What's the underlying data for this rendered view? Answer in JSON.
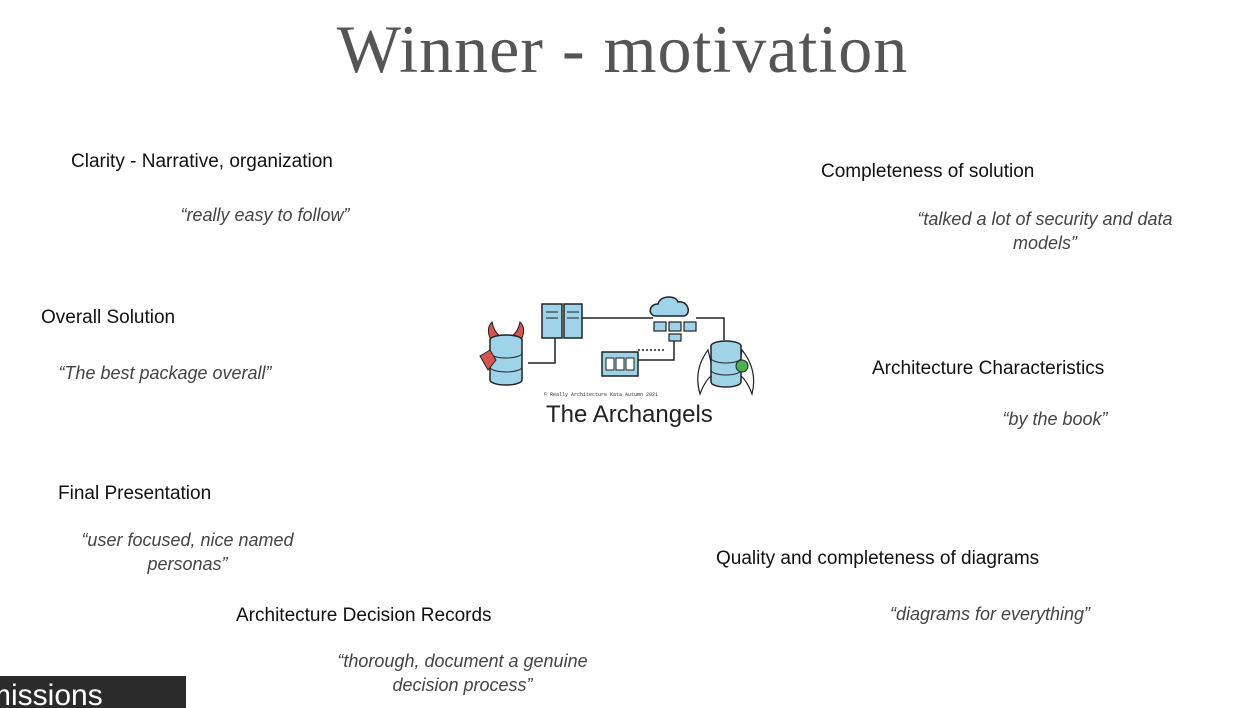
{
  "slide": {
    "title": "Winner - motivation",
    "criteria": [
      {
        "heading": "Clarity - Narrative, organization",
        "quote_lines": [
          "“really easy to follow”"
        ]
      },
      {
        "heading": "Completeness of solution",
        "quote_lines": [
          "“talked a lot of security and data",
          "models”"
        ]
      },
      {
        "heading": "Overall Solution",
        "quote_lines": [
          "“The best package overall”"
        ]
      },
      {
        "heading": "Architecture Characteristics",
        "quote_lines": [
          "“by the book”"
        ]
      },
      {
        "heading": "Final Presentation",
        "quote_lines": [
          "“user focused, nice named",
          "personas”"
        ]
      },
      {
        "heading": "Quality and completeness of diagrams",
        "quote_lines": [
          "“diagrams for everything”"
        ]
      },
      {
        "heading": "Architecture Decision Records",
        "quote_lines": [
          "“thorough, document a genuine",
          "decision process”"
        ]
      }
    ],
    "logo": {
      "name": "The Archangels",
      "small_text": "© Really Architecture Kata Autumn 2021",
      "colors": {
        "blue": "#9fd3ea",
        "outline": "#222222",
        "red": "#d9534f",
        "green": "#4caf50"
      }
    }
  },
  "caption": {
    "text": "missions"
  }
}
